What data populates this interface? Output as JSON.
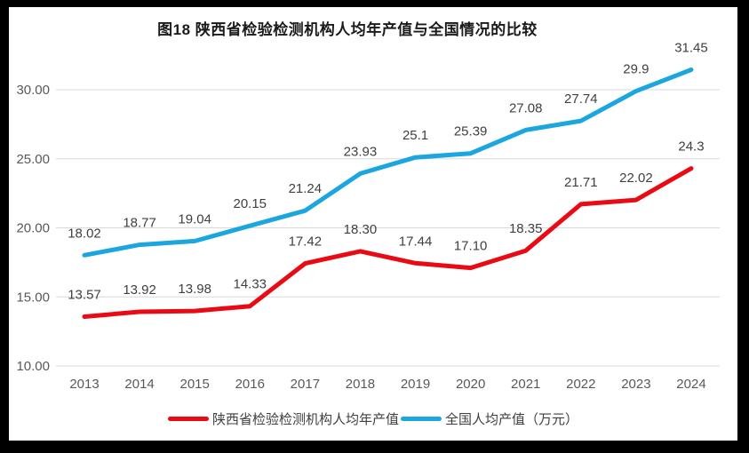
{
  "chart_data": {
    "type": "line",
    "title": "图18 陕西省检验检测机构人均年产值与全国情况的比较",
    "categories": [
      "2013",
      "2014",
      "2015",
      "2016",
      "2017",
      "2018",
      "2019",
      "2020",
      "2021",
      "2022",
      "2023",
      "2024"
    ],
    "series": [
      {
        "name": "陕西省检验检测机构人均年产值",
        "color": "#e90a14",
        "values": [
          13.57,
          13.92,
          13.98,
          14.33,
          17.42,
          18.3,
          17.44,
          17.1,
          18.35,
          21.71,
          22.02,
          24.3
        ],
        "labels": [
          "13.57",
          "13.92",
          "13.98",
          "14.33",
          "17.42",
          "18.30",
          "17.44",
          "17.10",
          "18.35",
          "21.71",
          "22.02",
          "24.3"
        ]
      },
      {
        "name": "全国人均产值（万元）",
        "color": "#1ca6e0",
        "values": [
          18.02,
          18.77,
          19.04,
          20.15,
          21.24,
          23.93,
          25.1,
          25.39,
          27.08,
          27.74,
          29.9,
          31.45
        ],
        "labels": [
          "18.02",
          "18.77",
          "19.04",
          "20.15",
          "21.24",
          "23.93",
          "25.1",
          "25.39",
          "27.08",
          "27.74",
          "29.9",
          "31.45"
        ]
      }
    ],
    "y_axis": {
      "min": 10,
      "max": 30,
      "step": 5,
      "tick_labels": [
        "10.00",
        "15.00",
        "20.00",
        "25.00",
        "30.00"
      ]
    },
    "xlabel": "",
    "ylabel": "",
    "grid": true,
    "legend_position": "bottom",
    "colors": {
      "gridline": "#d9d9d9",
      "axis_text": "#595959",
      "data_label_text": "#404040",
      "background": "#ffffff",
      "frame_border": "#000000"
    }
  }
}
